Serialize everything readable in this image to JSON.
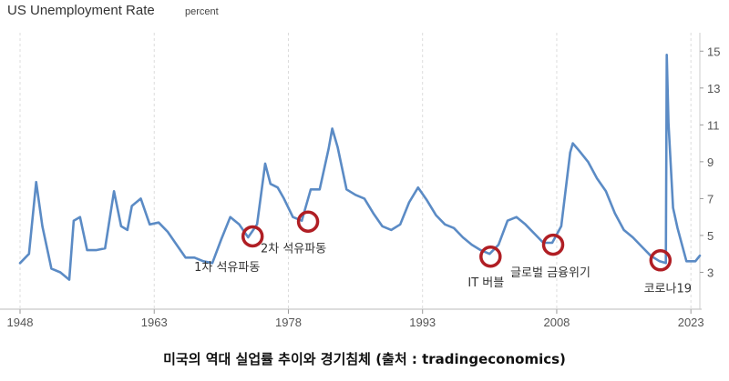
{
  "header": {
    "title": "US Unemployment Rate",
    "subtitle": "percent"
  },
  "caption": "미국의 역대 실업률 추이와 경기침체 (출처 : tradingeconomics)",
  "colors": {
    "line": "#5b8bc5",
    "marker": "#b01e24",
    "grid": "#dcdcdc",
    "text": "#555555"
  },
  "chart_data": {
    "type": "line",
    "title": "US Unemployment Rate",
    "subtitle": "percent",
    "xlabel": "",
    "ylabel": "",
    "xlim": [
      1948,
      2024
    ],
    "ylim": [
      1,
      16
    ],
    "x_ticks": [
      1948,
      1963,
      1978,
      1993,
      2008,
      2023
    ],
    "y_ticks": [
      3,
      5,
      7,
      9,
      11,
      13,
      15
    ],
    "grid": "vertical dashed",
    "y_axis_side": "right",
    "series": [
      {
        "x": [
          1948.0,
          1949.0,
          1949.8,
          1950.5,
          1951.5,
          1952.5,
          1953.5,
          1954.0,
          1954.7,
          1955.5,
          1956.5,
          1957.5,
          1958.5,
          1959.3,
          1960.0,
          1960.5,
          1961.5,
          1962.5,
          1963.5,
          1964.5,
          1965.5,
          1966.5,
          1967.5,
          1968.5,
          1969.5,
          1970.5,
          1971.5,
          1972.5,
          1973.5,
          1974.5,
          1975.4,
          1976.0,
          1976.8,
          1977.5,
          1978.5,
          1979.5,
          1980.5,
          1981.0,
          1981.5,
          1982.5,
          1982.9,
          1983.5,
          1984.5,
          1985.5,
          1986.5,
          1987.5,
          1988.5,
          1989.5,
          1990.5,
          1991.5,
          1992.5,
          1993.5,
          1994.5,
          1995.5,
          1996.5,
          1997.5,
          1998.5,
          1999.5,
          2000.5,
          2001.5,
          2002.5,
          2003.5,
          2004.5,
          2005.5,
          2006.5,
          2007.5,
          2008.5,
          2009.5,
          2009.8,
          2010.5,
          2011.5,
          2012.5,
          2013.5,
          2014.5,
          2015.5,
          2016.5,
          2017.5,
          2018.5,
          2019.5,
          2020.2,
          2020.3,
          2020.5,
          2021.0,
          2021.5,
          2022.5,
          2023.5,
          2024.0
        ],
        "y": [
          3.5,
          4.0,
          7.9,
          5.5,
          3.2,
          3.0,
          2.6,
          5.8,
          6.0,
          4.2,
          4.2,
          4.3,
          7.4,
          5.5,
          5.3,
          6.6,
          7.0,
          5.6,
          5.7,
          5.2,
          4.5,
          3.8,
          3.8,
          3.6,
          3.5,
          4.8,
          6.0,
          5.6,
          4.9,
          5.6,
          8.9,
          7.8,
          7.6,
          7.0,
          6.0,
          5.8,
          7.5,
          7.5,
          7.5,
          9.7,
          10.8,
          9.8,
          7.5,
          7.2,
          7.0,
          6.2,
          5.5,
          5.3,
          5.6,
          6.8,
          7.6,
          6.9,
          6.1,
          5.6,
          5.4,
          4.9,
          4.5,
          4.2,
          4.0,
          4.5,
          5.8,
          6.0,
          5.6,
          5.1,
          4.6,
          4.6,
          5.5,
          9.5,
          10.0,
          9.6,
          9.0,
          8.1,
          7.4,
          6.2,
          5.3,
          4.9,
          4.4,
          3.9,
          3.6,
          3.5,
          14.8,
          11.1,
          6.5,
          5.4,
          3.6,
          3.6,
          3.9
        ]
      }
    ],
    "annotations": [
      {
        "x": 1974.0,
        "y": 4.95,
        "label": "1차 석유파동"
      },
      {
        "x": 1980.2,
        "y": 5.75,
        "label": "2차 석유파동"
      },
      {
        "x": 2000.6,
        "y": 3.85,
        "label": "IT 버블"
      },
      {
        "x": 2007.6,
        "y": 4.5,
        "label": "글로벌 금융위기"
      },
      {
        "x": 2019.6,
        "y": 3.65,
        "label": "코로나19"
      }
    ]
  }
}
